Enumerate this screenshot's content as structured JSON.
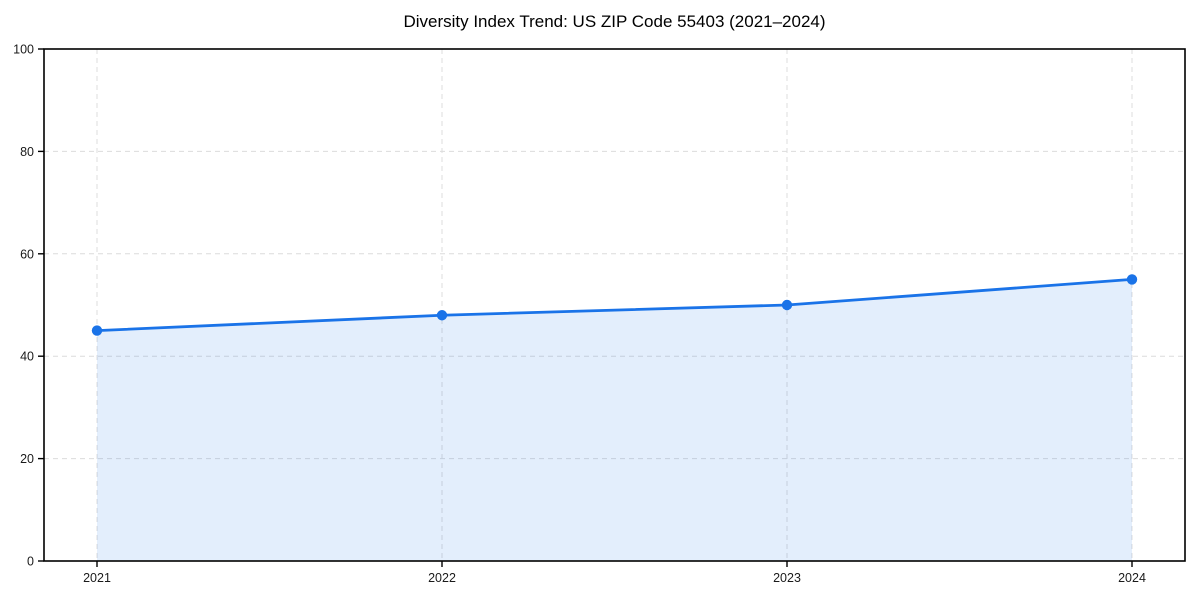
{
  "chart_data": {
    "type": "area",
    "title": "Diversity Index Trend: US ZIP Code 55403 (2021–2024)",
    "categories": [
      "2021",
      "2022",
      "2023",
      "2024"
    ],
    "series": [
      {
        "name": "Diversity Index",
        "values": [
          45,
          48,
          50,
          55
        ]
      }
    ],
    "xlabel": "",
    "ylabel": "",
    "ylim": [
      0,
      100
    ],
    "yticks": [
      0,
      20,
      40,
      60,
      80,
      100
    ],
    "grid": true,
    "grid_style": "dashed",
    "legend": false,
    "colors": {
      "line": "#1a73e8",
      "marker": "#1a73e8",
      "fill": "rgba(26,115,232,0.12)",
      "grid": "#dcdcdc",
      "axis": "#000000",
      "tick_text": "#1a1a1a"
    }
  }
}
